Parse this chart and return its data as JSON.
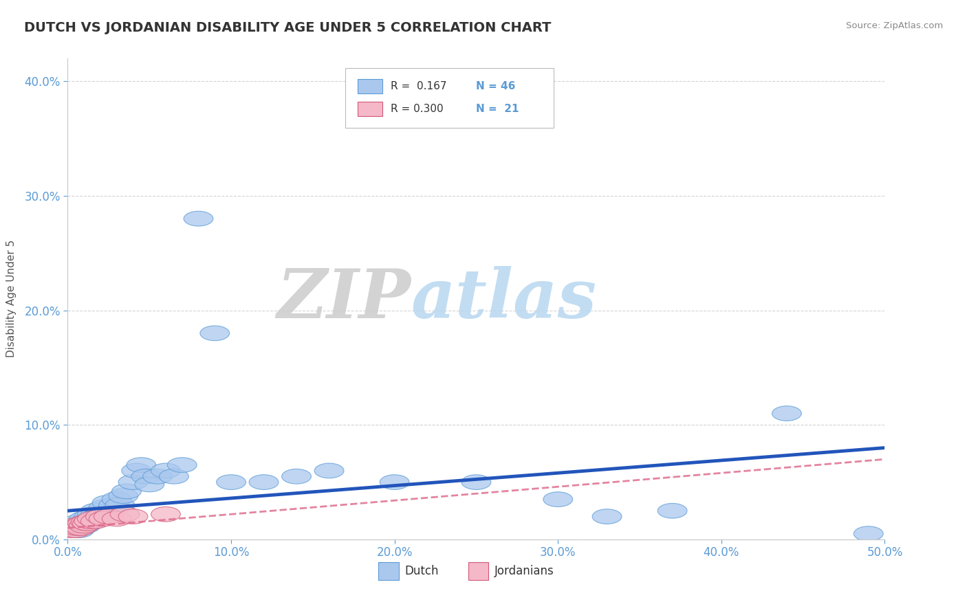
{
  "title": "DUTCH VS JORDANIAN DISABILITY AGE UNDER 5 CORRELATION CHART",
  "source": "Source: ZipAtlas.com",
  "ylabel": "Disability Age Under 5",
  "xlim": [
    0.0,
    0.5
  ],
  "ylim": [
    0.0,
    0.42
  ],
  "yticks": [
    0.0,
    0.1,
    0.2,
    0.3,
    0.4
  ],
  "xticks": [
    0.0,
    0.1,
    0.2,
    0.3,
    0.4,
    0.5
  ],
  "dutch_R": 0.167,
  "dutch_N": 46,
  "jordanian_R": 0.3,
  "jordanian_N": 21,
  "dutch_color": "#aac8ee",
  "dutch_edge": "#5b9bd5",
  "jordanian_color": "#f5b8c8",
  "jordanian_edge": "#d05878",
  "line_dutch_color": "#2255bb",
  "line_jordan_color": "#dd6688",
  "background_color": "#ffffff",
  "grid_color": "#c8c8c8",
  "title_color": "#333333",
  "axis_tick_color": "#5b9bd5",
  "watermark_zip": "ZIP",
  "watermark_atlas": "atlas",
  "dutch_x": [
    0.002,
    0.004,
    0.006,
    0.007,
    0.008,
    0.009,
    0.01,
    0.011,
    0.012,
    0.013,
    0.014,
    0.015,
    0.016,
    0.017,
    0.018,
    0.02,
    0.022,
    0.024,
    0.026,
    0.028,
    0.03,
    0.032,
    0.034,
    0.036,
    0.04,
    0.042,
    0.045,
    0.048,
    0.05,
    0.055,
    0.06,
    0.065,
    0.07,
    0.08,
    0.09,
    0.1,
    0.12,
    0.14,
    0.16,
    0.2,
    0.25,
    0.3,
    0.33,
    0.37,
    0.44,
    0.49
  ],
  "dutch_y": [
    0.01,
    0.012,
    0.015,
    0.008,
    0.01,
    0.014,
    0.018,
    0.012,
    0.016,
    0.02,
    0.015,
    0.022,
    0.018,
    0.025,
    0.02,
    0.022,
    0.028,
    0.032,
    0.025,
    0.03,
    0.035,
    0.03,
    0.038,
    0.042,
    0.05,
    0.06,
    0.065,
    0.055,
    0.048,
    0.055,
    0.06,
    0.055,
    0.065,
    0.28,
    0.18,
    0.05,
    0.05,
    0.055,
    0.06,
    0.05,
    0.05,
    0.035,
    0.02,
    0.025,
    0.11,
    0.005
  ],
  "jordan_x": [
    0.002,
    0.003,
    0.004,
    0.005,
    0.006,
    0.007,
    0.008,
    0.009,
    0.01,
    0.011,
    0.012,
    0.013,
    0.015,
    0.017,
    0.02,
    0.022,
    0.025,
    0.03,
    0.035,
    0.04,
    0.06
  ],
  "jordan_y": [
    0.008,
    0.01,
    0.012,
    0.008,
    0.01,
    0.012,
    0.01,
    0.014,
    0.012,
    0.015,
    0.014,
    0.016,
    0.018,
    0.016,
    0.02,
    0.018,
    0.02,
    0.018,
    0.022,
    0.02,
    0.022
  ],
  "line_dutch_x0": 0.0,
  "line_dutch_y0": 0.025,
  "line_dutch_x1": 0.5,
  "line_dutch_y1": 0.08,
  "line_jordan_x0": 0.0,
  "line_jordan_y0": 0.01,
  "line_jordan_x1": 0.5,
  "line_jordan_y1": 0.07
}
